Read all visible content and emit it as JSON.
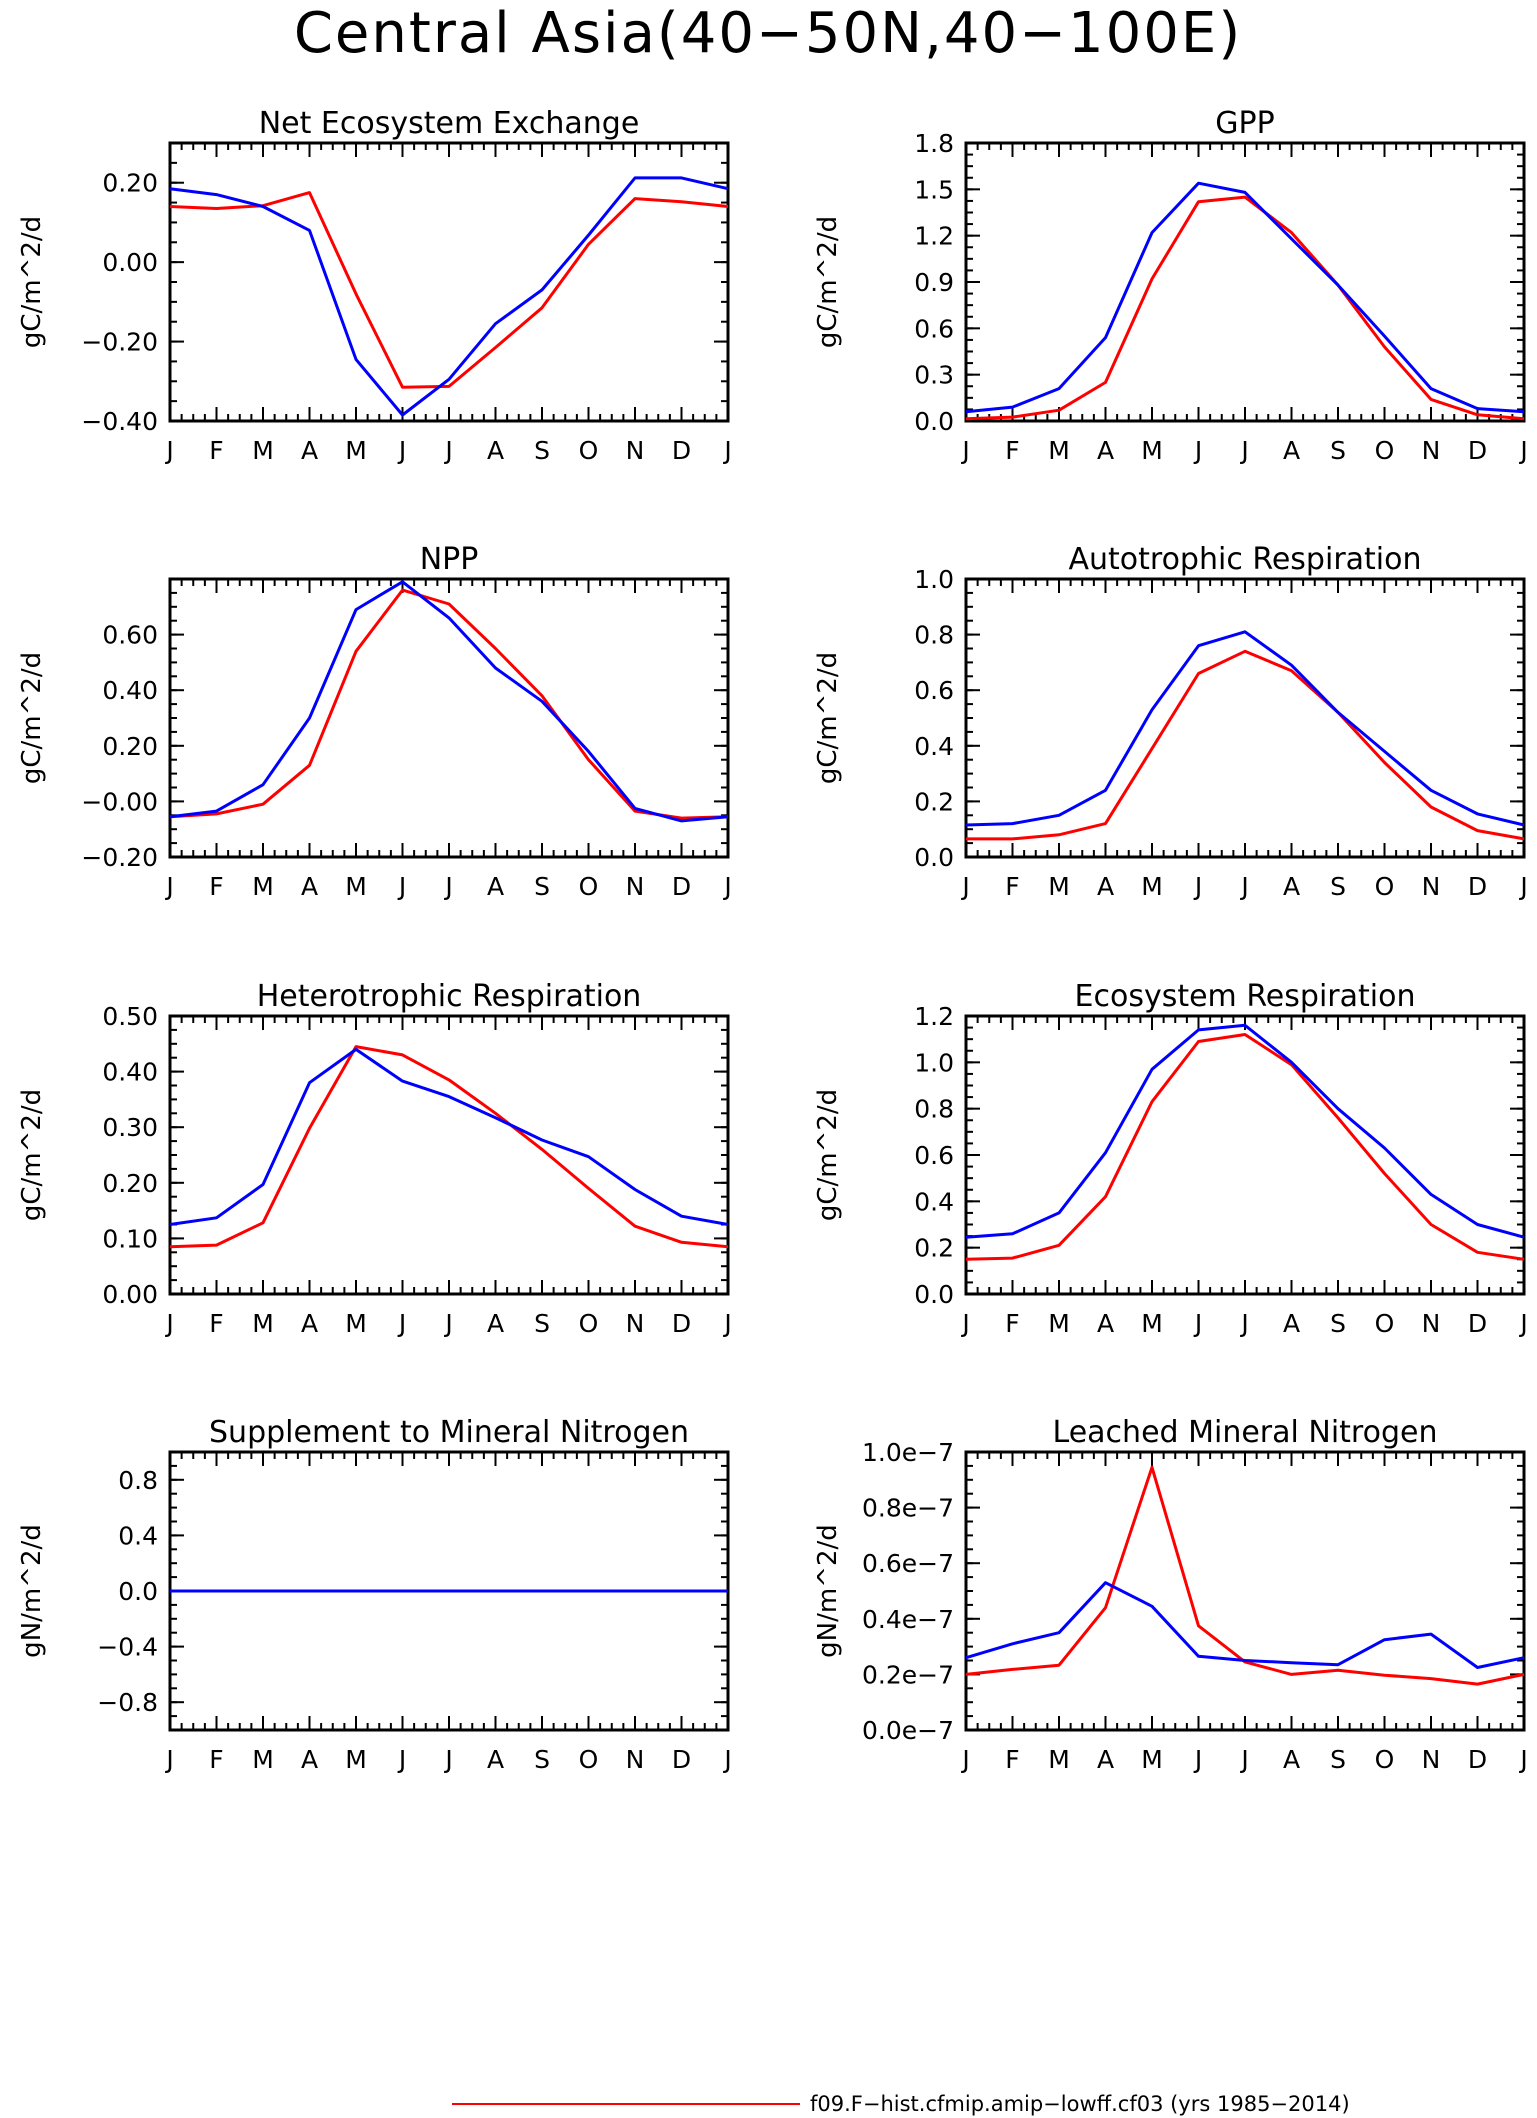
{
  "figure": {
    "title": "Central Asia(40−50N,40−100E)"
  },
  "legend": [
    {
      "label": "f09.F−hist.cfmip.amip−lowff.cf03 (yrs 1985−2014)",
      "color": "#ff0000"
    }
  ],
  "months": [
    "J",
    "F",
    "M",
    "A",
    "M",
    "J",
    "J",
    "A",
    "S",
    "O",
    "N",
    "D",
    "J"
  ],
  "chart_data": [
    {
      "type": "line",
      "title": "Net Ecosystem Exchange",
      "ylabel": "gC/m^2/d",
      "ylim": [
        -0.4,
        0.3
      ],
      "yticks": [
        -0.4,
        -0.2,
        0.0,
        0.2
      ],
      "ytick_labels": [
        "−0.40",
        "−0.20",
        "0.00",
        "0.20"
      ],
      "series": [
        {
          "color": "#ff0000",
          "values": [
            0.14,
            0.135,
            0.142,
            0.175,
            -0.08,
            -0.315,
            -0.313,
            -0.215,
            -0.115,
            0.045,
            0.16,
            0.152,
            0.14
          ]
        },
        {
          "color": "#0000ff",
          "values": [
            0.185,
            0.17,
            0.14,
            0.08,
            -0.245,
            -0.385,
            -0.295,
            -0.155,
            -0.07,
            0.068,
            0.212,
            0.212,
            0.185
          ]
        }
      ]
    },
    {
      "type": "line",
      "title": "GPP",
      "ylabel": "gC/m^2/d",
      "ylim": [
        0.0,
        1.8
      ],
      "yticks": [
        0.0,
        0.3,
        0.6,
        0.9,
        1.2,
        1.5,
        1.8
      ],
      "ytick_labels": [
        "0.0",
        "0.3",
        "0.6",
        "0.9",
        "1.2",
        "1.5",
        "1.8"
      ],
      "series": [
        {
          "color": "#ff0000",
          "values": [
            0.015,
            0.025,
            0.07,
            0.25,
            0.92,
            1.42,
            1.45,
            1.22,
            0.88,
            0.48,
            0.14,
            0.04,
            0.015
          ]
        },
        {
          "color": "#0000ff",
          "values": [
            0.06,
            0.09,
            0.21,
            0.54,
            1.22,
            1.54,
            1.48,
            1.18,
            0.88,
            0.55,
            0.21,
            0.08,
            0.06
          ]
        }
      ]
    },
    {
      "type": "line",
      "title": "NPP",
      "ylabel": "gC/m^2/d",
      "ylim": [
        -0.2,
        0.8
      ],
      "yticks": [
        -0.2,
        0.0,
        0.2,
        0.4,
        0.6
      ],
      "ytick_labels": [
        "−0.20",
        "−0.00",
        "0.20",
        "0.40",
        "0.60"
      ],
      "series": [
        {
          "color": "#ff0000",
          "values": [
            -0.055,
            -0.045,
            -0.01,
            0.13,
            0.54,
            0.76,
            0.71,
            0.55,
            0.38,
            0.15,
            -0.035,
            -0.06,
            -0.055
          ]
        },
        {
          "color": "#0000ff",
          "values": [
            -0.055,
            -0.035,
            0.06,
            0.3,
            0.69,
            0.79,
            0.66,
            0.48,
            0.36,
            0.18,
            -0.025,
            -0.07,
            -0.055
          ]
        }
      ]
    },
    {
      "type": "line",
      "title": "Autotrophic Respiration",
      "ylabel": "gC/m^2/d",
      "ylim": [
        0.0,
        1.0
      ],
      "yticks": [
        0.0,
        0.2,
        0.4,
        0.6,
        0.8,
        1.0
      ],
      "ytick_labels": [
        "0.0",
        "0.2",
        "0.4",
        "0.6",
        "0.8",
        "1.0"
      ],
      "series": [
        {
          "color": "#ff0000",
          "values": [
            0.065,
            0.065,
            0.08,
            0.12,
            0.39,
            0.66,
            0.74,
            0.67,
            0.52,
            0.34,
            0.18,
            0.095,
            0.065
          ]
        },
        {
          "color": "#0000ff",
          "values": [
            0.115,
            0.12,
            0.15,
            0.24,
            0.53,
            0.76,
            0.81,
            0.69,
            0.52,
            0.38,
            0.24,
            0.155,
            0.115
          ]
        }
      ]
    },
    {
      "type": "line",
      "title": "Heterotrophic Respiration",
      "ylabel": "gC/m^2/d",
      "ylim": [
        0.0,
        0.5
      ],
      "yticks": [
        0.0,
        0.1,
        0.2,
        0.3,
        0.4,
        0.5
      ],
      "ytick_labels": [
        "0.00",
        "0.10",
        "0.20",
        "0.30",
        "0.40",
        "0.50"
      ],
      "series": [
        {
          "color": "#ff0000",
          "values": [
            0.085,
            0.088,
            0.128,
            0.298,
            0.445,
            0.43,
            0.385,
            0.325,
            0.26,
            0.19,
            0.122,
            0.093,
            0.085
          ]
        },
        {
          "color": "#0000ff",
          "values": [
            0.125,
            0.137,
            0.197,
            0.38,
            0.44,
            0.383,
            0.355,
            0.317,
            0.277,
            0.247,
            0.188,
            0.14,
            0.125
          ]
        }
      ]
    },
    {
      "type": "line",
      "title": "Ecosystem Respiration",
      "ylabel": "gC/m^2/d",
      "ylim": [
        0.0,
        1.2
      ],
      "yticks": [
        0.0,
        0.2,
        0.4,
        0.6,
        0.8,
        1.0,
        1.2
      ],
      "ytick_labels": [
        "0.0",
        "0.2",
        "0.4",
        "0.6",
        "0.8",
        "1.0",
        "1.2"
      ],
      "series": [
        {
          "color": "#ff0000",
          "values": [
            0.15,
            0.155,
            0.21,
            0.42,
            0.83,
            1.09,
            1.12,
            0.99,
            0.76,
            0.52,
            0.3,
            0.18,
            0.15
          ]
        },
        {
          "color": "#0000ff",
          "values": [
            0.245,
            0.26,
            0.35,
            0.61,
            0.97,
            1.14,
            1.16,
            1.0,
            0.8,
            0.63,
            0.43,
            0.3,
            0.245
          ]
        }
      ]
    },
    {
      "type": "line",
      "title": "Supplement to Mineral Nitrogen",
      "ylabel": "gN/m^2/d",
      "ylim": [
        -1.0,
        1.0
      ],
      "yticks": [
        -0.8,
        -0.4,
        0.0,
        0.4,
        0.8
      ],
      "ytick_labels": [
        "−0.8",
        "−0.4",
        "0.0",
        "0.4",
        "0.8"
      ],
      "series": [
        {
          "color": "#ff0000",
          "values": [
            0,
            0,
            0,
            0,
            0,
            0,
            0,
            0,
            0,
            0,
            0,
            0,
            0
          ]
        },
        {
          "color": "#0000ff",
          "values": [
            0,
            0,
            0,
            0,
            0,
            0,
            0,
            0,
            0,
            0,
            0,
            0,
            0
          ]
        }
      ]
    },
    {
      "type": "line",
      "title": "Leached Mineral Nitrogen",
      "ylabel": "gN/m^2/d",
      "ylim": [
        0.0,
        1e-07
      ],
      "yticks": [
        0.0,
        2e-08,
        4e-08,
        6e-08,
        8e-08,
        1e-07
      ],
      "ytick_labels": [
        "0.0e−7",
        "0.2e−7",
        "0.4e−7",
        "0.6e−7",
        "0.8e−7",
        "1.0e−7"
      ],
      "series": [
        {
          "color": "#ff0000",
          "values": [
            2e-08,
            2.18e-08,
            2.33e-08,
            4.4e-08,
            9.45e-08,
            3.75e-08,
            2.45e-08,
            2e-08,
            2.15e-08,
            1.97e-08,
            1.85e-08,
            1.65e-08,
            2e-08
          ]
        },
        {
          "color": "#0000ff",
          "values": [
            2.6e-08,
            3.1e-08,
            3.5e-08,
            5.3e-08,
            4.45e-08,
            2.65e-08,
            2.5e-08,
            2.42e-08,
            2.35e-08,
            3.25e-08,
            3.45e-08,
            2.25e-08,
            2.6e-08
          ]
        }
      ]
    }
  ]
}
